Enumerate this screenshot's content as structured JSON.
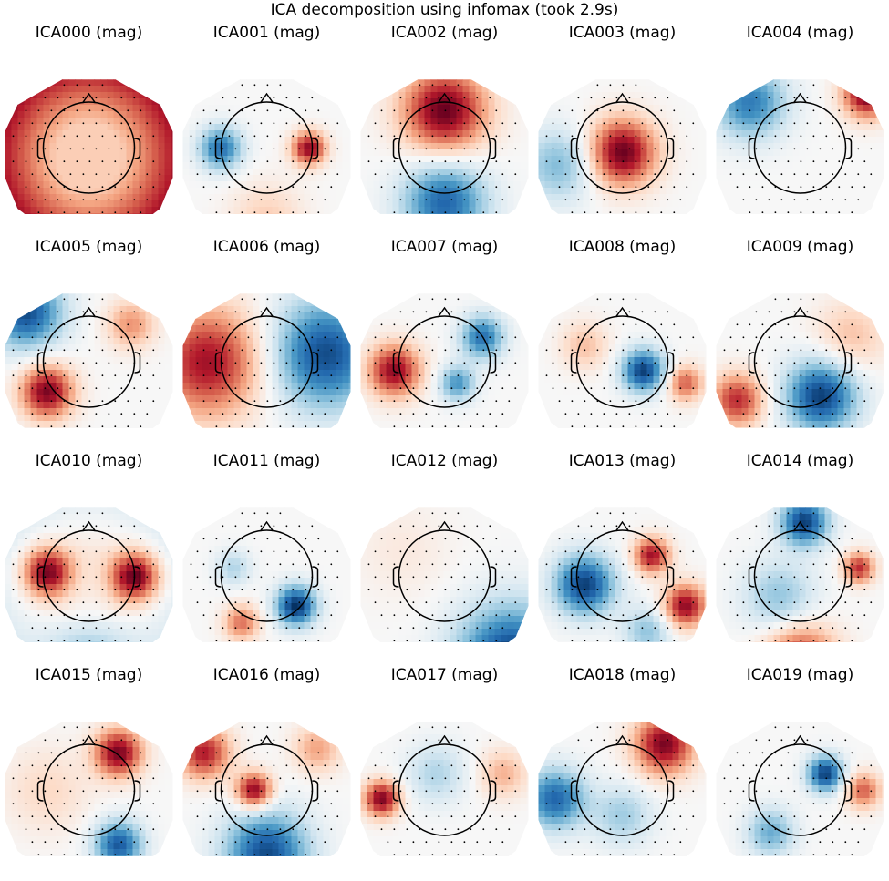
{
  "figure": {
    "title": "ICA decomposition using infomax (took 2.9s)"
  },
  "colormap": {
    "name": "RdBu_r",
    "negative": "#053061",
    "mid": "#f7f7f7",
    "positive": "#67001f"
  },
  "chart_data": {
    "type": "heatmap",
    "title": "ICA decomposition using infomax (took 2.9s)",
    "grid": false,
    "layout_grid": {
      "rows": 4,
      "cols": 5
    },
    "components": [
      {
        "title": "ICA000 (mag)",
        "blobs": [
          [
            0.0,
            0.0,
            0.0,
            0.0
          ]
        ],
        "bias": 0.25,
        "edge": 0.55
      },
      {
        "title": "ICA001 (mag)",
        "blobs": [
          [
            -0.55,
            -0.1,
            0.18,
            -0.75
          ],
          [
            0.5,
            -0.1,
            0.14,
            0.9
          ],
          [
            0.0,
            0.75,
            0.3,
            0.25
          ]
        ],
        "bias": 0.0,
        "edge": 0.0
      },
      {
        "title": "ICA002 (mag)",
        "blobs": [
          [
            0.0,
            -0.55,
            0.35,
            1.0
          ],
          [
            0.0,
            0.55,
            0.35,
            -0.8
          ]
        ],
        "bias": 0.0,
        "edge": 0.0
      },
      {
        "title": "ICA003 (mag)",
        "blobs": [
          [
            0.0,
            -0.05,
            0.28,
            1.0
          ],
          [
            -0.75,
            0.1,
            0.3,
            -0.45
          ]
        ],
        "bias": 0.0,
        "edge": 0.0
      },
      {
        "title": "ICA004 (mag)",
        "blobs": [
          [
            -0.6,
            -0.65,
            0.3,
            -0.7
          ],
          [
            0.8,
            -0.75,
            0.2,
            1.0
          ]
        ],
        "bias": 0.0,
        "edge": 0.0
      },
      {
        "title": "ICA005 (mag)",
        "blobs": [
          [
            -0.75,
            -0.7,
            0.3,
            -0.9
          ],
          [
            -0.5,
            0.25,
            0.22,
            0.95
          ],
          [
            0.5,
            -0.55,
            0.2,
            0.45
          ]
        ],
        "bias": 0.0,
        "edge": 0.0
      },
      {
        "title": "ICA006 (mag)",
        "blobs": [
          [
            -0.7,
            -0.1,
            0.45,
            0.85
          ],
          [
            0.7,
            -0.2,
            0.45,
            -0.9
          ]
        ],
        "bias": 0.0,
        "edge": 0.0
      },
      {
        "title": "ICA007 (mag)",
        "blobs": [
          [
            -0.6,
            0.0,
            0.22,
            0.9
          ],
          [
            0.45,
            -0.4,
            0.18,
            -0.75
          ],
          [
            0.15,
            0.15,
            0.15,
            -0.6
          ]
        ],
        "bias": 0.0,
        "edge": 0.0
      },
      {
        "title": "ICA008 (mag)",
        "blobs": [
          [
            0.25,
            0.0,
            0.18,
            -0.95
          ],
          [
            0.75,
            0.15,
            0.15,
            0.6
          ],
          [
            -0.45,
            -0.3,
            0.2,
            0.3
          ]
        ],
        "bias": 0.0,
        "edge": 0.0
      },
      {
        "title": "ICA009 (mag)",
        "blobs": [
          [
            0.25,
            0.3,
            0.3,
            -0.95
          ],
          [
            -0.75,
            0.35,
            0.22,
            0.75
          ],
          [
            0.6,
            -0.4,
            0.3,
            0.3
          ]
        ],
        "bias": 0.0,
        "edge": 0.0
      },
      {
        "title": "ICA010 (mag)",
        "blobs": [
          [
            -0.5,
            -0.15,
            0.2,
            0.9
          ],
          [
            0.55,
            -0.1,
            0.2,
            0.95
          ],
          [
            0.0,
            0.85,
            0.35,
            -0.35
          ]
        ],
        "bias": 0.1,
        "edge": -0.2
      },
      {
        "title": "ICA011 (mag)",
        "blobs": [
          [
            0.35,
            0.25,
            0.17,
            -1.0
          ],
          [
            -0.3,
            0.45,
            0.15,
            0.55
          ],
          [
            -0.4,
            -0.2,
            0.15,
            -0.3
          ]
        ],
        "bias": 0.0,
        "edge": 0.0
      },
      {
        "title": "ICA012 (mag)",
        "blobs": [
          [
            0.8,
            0.9,
            0.45,
            -1.0
          ],
          [
            -0.5,
            -0.4,
            0.4,
            0.1
          ]
        ],
        "bias": 0.0,
        "edge": 0.0
      },
      {
        "title": "ICA013 (mag)",
        "blobs": [
          [
            -0.45,
            0.0,
            0.25,
            -0.95
          ],
          [
            0.35,
            -0.35,
            0.15,
            0.85
          ],
          [
            0.75,
            0.25,
            0.18,
            0.9
          ],
          [
            0.3,
            0.55,
            0.2,
            -0.4
          ]
        ],
        "bias": 0.0,
        "edge": 0.0
      },
      {
        "title": "ICA014 (mag)",
        "blobs": [
          [
            0.05,
            -0.75,
            0.2,
            -0.95
          ],
          [
            0.7,
            -0.2,
            0.13,
            0.75
          ],
          [
            0.0,
            0.9,
            0.3,
            0.8
          ],
          [
            -0.25,
            0.15,
            0.3,
            -0.4
          ]
        ],
        "bias": 0.0,
        "edge": 0.0
      },
      {
        "title": "ICA015 (mag)",
        "blobs": [
          [
            0.35,
            -0.55,
            0.2,
            0.95
          ],
          [
            0.35,
            0.55,
            0.2,
            -0.85
          ],
          [
            -0.5,
            -0.1,
            0.35,
            0.2
          ]
        ],
        "bias": 0.0,
        "edge": 0.0
      },
      {
        "title": "ICA016 (mag)",
        "blobs": [
          [
            -0.15,
            -0.1,
            0.15,
            0.95
          ],
          [
            -0.75,
            -0.55,
            0.22,
            0.8
          ],
          [
            0.0,
            0.65,
            0.35,
            -0.9
          ],
          [
            0.6,
            -0.6,
            0.2,
            0.4
          ]
        ],
        "bias": 0.0,
        "edge": 0.0
      },
      {
        "title": "ICA017 (mag)",
        "blobs": [
          [
            -0.75,
            0.0,
            0.15,
            0.95
          ],
          [
            -0.1,
            -0.3,
            0.25,
            -0.3
          ],
          [
            0.7,
            -0.3,
            0.2,
            0.35
          ]
        ],
        "bias": 0.0,
        "edge": 0.0
      },
      {
        "title": "ICA018 (mag)",
        "blobs": [
          [
            -0.8,
            0.0,
            0.25,
            -0.8
          ],
          [
            0.5,
            -0.65,
            0.25,
            0.95
          ],
          [
            0.0,
            0.2,
            0.25,
            -0.35
          ]
        ],
        "bias": 0.0,
        "edge": 0.0
      },
      {
        "title": "ICA019 (mag)",
        "blobs": [
          [
            0.3,
            -0.3,
            0.15,
            -0.95
          ],
          [
            -0.35,
            0.4,
            0.2,
            -0.5
          ],
          [
            0.75,
            -0.1,
            0.15,
            0.6
          ]
        ],
        "bias": 0.0,
        "edge": 0.0
      }
    ]
  }
}
